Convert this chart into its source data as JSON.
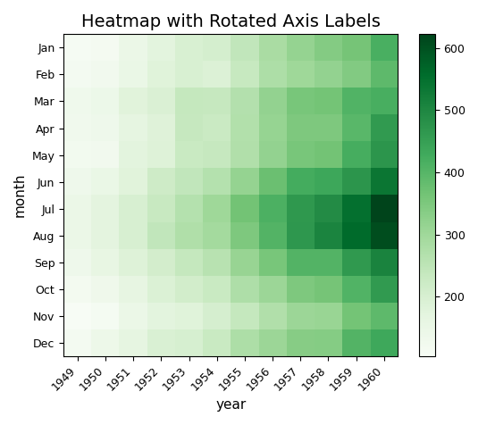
{
  "title": "Heatmap with Rotated Axis Labels",
  "xlabel": "year",
  "ylabel": "month",
  "months": [
    "Jan",
    "Feb",
    "Mar",
    "Apr",
    "May",
    "Jun",
    "Jul",
    "Aug",
    "Sep",
    "Oct",
    "Nov",
    "Dec"
  ],
  "years": [
    1949,
    1950,
    1951,
    1952,
    1953,
    1954,
    1955,
    1956,
    1957,
    1958,
    1959,
    1960
  ],
  "data": [
    [
      112,
      115,
      145,
      171,
      196,
      204,
      242,
      284,
      315,
      340,
      360,
      417
    ],
    [
      118,
      126,
      150,
      180,
      196,
      188,
      233,
      277,
      301,
      318,
      342,
      391
    ],
    [
      132,
      141,
      178,
      193,
      236,
      235,
      267,
      317,
      356,
      362,
      406,
      419
    ],
    [
      129,
      135,
      163,
      181,
      235,
      227,
      269,
      313,
      348,
      348,
      396,
      461
    ],
    [
      121,
      125,
      172,
      183,
      229,
      234,
      270,
      318,
      355,
      363,
      420,
      472
    ],
    [
      135,
      149,
      178,
      218,
      243,
      264,
      315,
      374,
      422,
      435,
      472,
      535
    ],
    [
      148,
      170,
      199,
      230,
      264,
      302,
      364,
      413,
      465,
      491,
      548,
      622
    ],
    [
      148,
      170,
      199,
      242,
      272,
      293,
      347,
      405,
      467,
      505,
      559,
      606
    ],
    [
      136,
      158,
      184,
      209,
      237,
      259,
      312,
      355,
      404,
      404,
      463,
      508
    ],
    [
      119,
      133,
      162,
      191,
      211,
      229,
      274,
      306,
      347,
      359,
      407,
      461
    ],
    [
      104,
      114,
      146,
      172,
      180,
      203,
      237,
      271,
      305,
      310,
      362,
      390
    ],
    [
      118,
      140,
      166,
      194,
      201,
      229,
      278,
      306,
      336,
      337,
      405,
      432
    ]
  ],
  "cmap": "Greens",
  "colorbar_ticks": [
    200,
    300,
    400,
    500,
    600
  ],
  "xtick_rotation": 45,
  "ytick_rotation": 0,
  "title_fontsize": 14,
  "figsize": [
    5.54,
    4.76
  ],
  "dpi": 100
}
